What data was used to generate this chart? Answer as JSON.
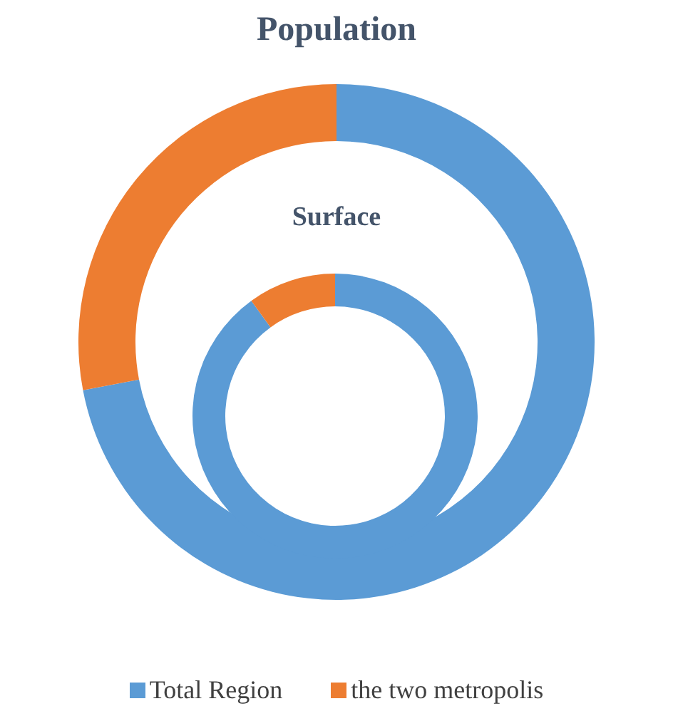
{
  "chart_data": {
    "type": "donut",
    "categories": [
      "Total Region",
      "the two metropolis"
    ],
    "colors": [
      "#5b9bd5",
      "#ed7d31"
    ],
    "legend": "bottom",
    "series": [
      {
        "name": "Population",
        "values": [
          72,
          28
        ]
      },
      {
        "name": "Surface",
        "values": [
          90,
          10
        ]
      }
    ]
  }
}
